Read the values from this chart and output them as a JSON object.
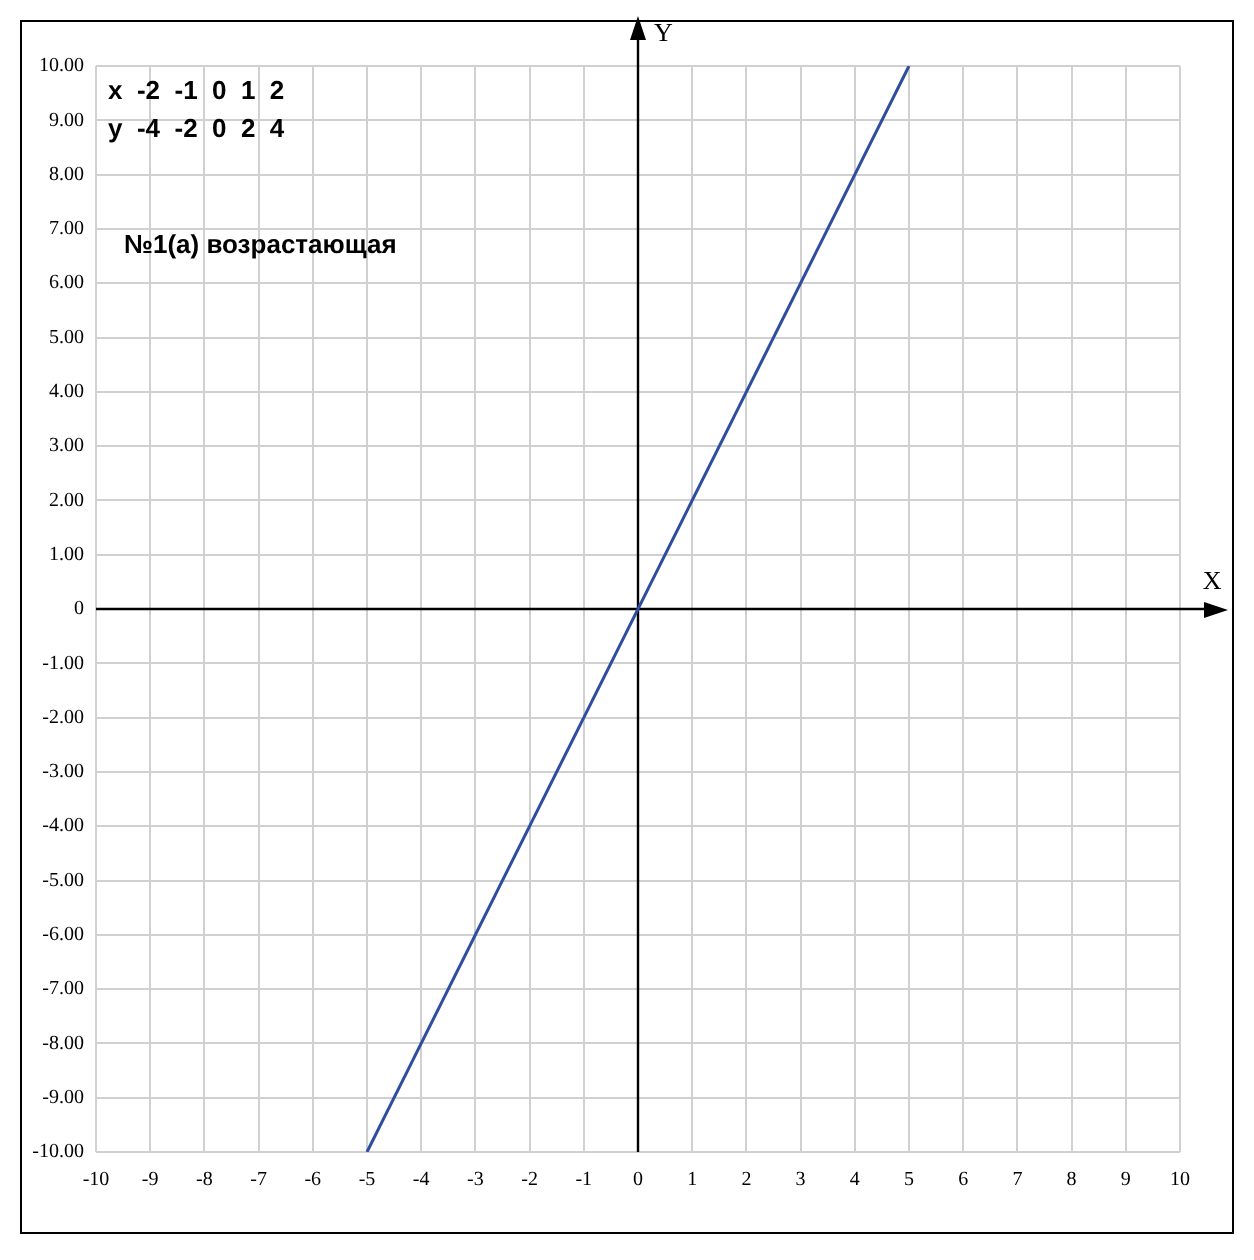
{
  "chart_data": {
    "type": "line",
    "xlabel": "X",
    "ylabel": "Y",
    "annotations": [
      "x  -2  -1  0  1  2",
      "y  -4  -2  0  2  4",
      "№1(а) возрастающая"
    ],
    "series": [
      {
        "x": [
          -5,
          5
        ],
        "values": [
          -10,
          10
        ],
        "color": "#2e4d9e"
      }
    ],
    "xlim": [
      -10,
      10
    ],
    "ylim": [
      -10,
      10
    ],
    "xticks": [
      -10,
      -9,
      -8,
      -7,
      -6,
      -5,
      -4,
      -3,
      -2,
      -1,
      0,
      1,
      2,
      3,
      4,
      5,
      6,
      7,
      8,
      9,
      10
    ],
    "yticks": [
      {
        "value": -10,
        "label": "-10.00"
      },
      {
        "value": -9,
        "label": "-9.00"
      },
      {
        "value": -8,
        "label": "-8.00"
      },
      {
        "value": -7,
        "label": "-7.00"
      },
      {
        "value": -6,
        "label": "-6.00"
      },
      {
        "value": -5,
        "label": "-5.00"
      },
      {
        "value": -4,
        "label": "-4.00"
      },
      {
        "value": -3,
        "label": "-3.00"
      },
      {
        "value": -2,
        "label": "-2.00"
      },
      {
        "value": -1,
        "label": "-1.00"
      },
      0,
      {
        "value": 1,
        "label": "1.00"
      },
      {
        "value": 2,
        "label": "2.00"
      },
      {
        "value": 3,
        "label": "3.00"
      },
      {
        "value": 4,
        "label": "4.00"
      },
      {
        "value": 5,
        "label": "5.00"
      },
      {
        "value": 6,
        "label": "6.00"
      },
      {
        "value": 7,
        "label": "7.00"
      },
      {
        "value": 8,
        "label": "8.00"
      },
      {
        "value": 9,
        "label": "9.00"
      },
      {
        "value": 10,
        "label": "10.00"
      }
    ],
    "grid": true,
    "marker": "none",
    "legend": false
  }
}
